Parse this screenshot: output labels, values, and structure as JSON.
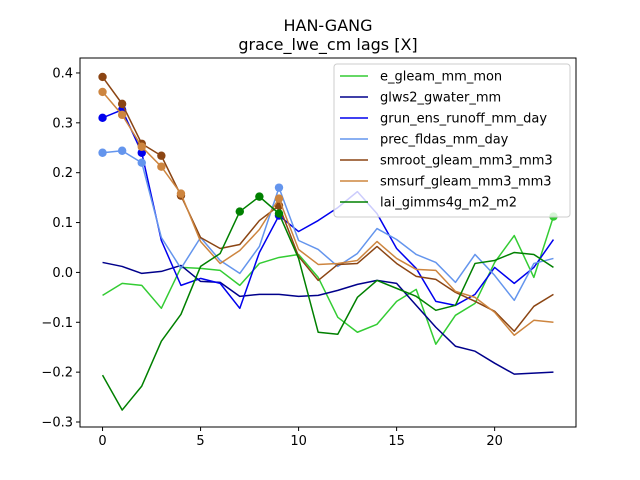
{
  "chart_data": {
    "type": "line",
    "title": "HAN-GANG",
    "subtitle": "grace_lwe_cm lags [X]",
    "xlabel": "",
    "ylabel": "",
    "xlim": [
      -1.15,
      24.15
    ],
    "ylim": [
      -0.31,
      0.43
    ],
    "xticks": [
      0,
      5,
      10,
      15,
      20
    ],
    "yticks": [
      -0.3,
      -0.2,
      -0.1,
      0.0,
      0.1,
      0.2,
      0.3,
      0.4
    ],
    "ytick_labels": [
      "−0.3",
      "−0.2",
      "−0.1",
      "0.0",
      "0.1",
      "0.2",
      "0.3",
      "0.4"
    ],
    "grid": false,
    "legend_position": "top-right",
    "x": [
      0,
      1,
      2,
      3,
      4,
      5,
      6,
      7,
      8,
      9,
      10,
      11,
      12,
      13,
      14,
      15,
      16,
      17,
      18,
      19,
      20,
      21,
      22,
      23
    ],
    "series": [
      {
        "name": "e_gleam_mm_mon",
        "color": "#33cc33",
        "values": [
          -0.046,
          -0.022,
          -0.026,
          -0.072,
          0.01,
          0.008,
          0.004,
          -0.026,
          0.018,
          0.03,
          0.036,
          -0.01,
          -0.09,
          -0.12,
          -0.104,
          -0.058,
          -0.034,
          -0.144,
          -0.086,
          -0.062,
          0.02,
          0.074,
          -0.01,
          0.112
        ],
        "markers": [
          23
        ]
      },
      {
        "name": "glws2_gwater_mm",
        "color": "#00008b",
        "values": [
          0.02,
          0.012,
          -0.002,
          0.002,
          0.014,
          -0.018,
          -0.02,
          -0.048,
          -0.044,
          -0.044,
          -0.048,
          -0.046,
          -0.036,
          -0.024,
          -0.016,
          -0.022,
          -0.066,
          -0.11,
          -0.148,
          -0.158,
          -0.182,
          -0.204,
          -0.202,
          -0.2
        ],
        "markers": []
      },
      {
        "name": "grun_ens_runoff_mm_day",
        "color": "#0000ee",
        "values": [
          0.31,
          0.326,
          0.24,
          0.064,
          -0.026,
          -0.012,
          -0.022,
          -0.072,
          0.04,
          0.114,
          0.082,
          0.104,
          0.13,
          0.162,
          0.118,
          0.048,
          0.008,
          -0.058,
          -0.066,
          -0.044,
          0.01,
          -0.022,
          0.01,
          0.066
        ],
        "markers": [
          0,
          1,
          2,
          9
        ]
      },
      {
        "name": "prec_fldas_mm_day",
        "color": "#6495ed",
        "values": [
          0.24,
          0.244,
          0.22,
          0.07,
          0.008,
          0.07,
          0.024,
          -0.002,
          0.052,
          0.17,
          0.064,
          0.046,
          0.012,
          0.038,
          0.088,
          0.066,
          0.036,
          0.02,
          -0.02,
          0.036,
          -0.006,
          -0.056,
          0.018,
          0.028
        ],
        "markers": [
          0,
          1,
          2,
          9
        ]
      },
      {
        "name": "smroot_gleam_mm3_mm3",
        "color": "#8b4513",
        "values": [
          0.392,
          0.338,
          0.258,
          0.234,
          0.154,
          0.07,
          0.048,
          0.056,
          0.104,
          0.134,
          0.032,
          -0.016,
          0.016,
          0.018,
          0.052,
          0.018,
          -0.008,
          -0.014,
          -0.04,
          -0.058,
          -0.078,
          -0.118,
          -0.068,
          -0.044
        ],
        "markers": [
          0,
          1,
          2,
          3,
          4,
          9
        ]
      },
      {
        "name": "smsurf_gleam_mm3_mm3",
        "color": "#cd853f",
        "values": [
          0.362,
          0.316,
          0.252,
          0.212,
          0.158,
          0.062,
          0.018,
          0.044,
          0.086,
          0.148,
          0.046,
          0.016,
          0.018,
          0.024,
          0.062,
          0.028,
          0.006,
          0.004,
          -0.038,
          -0.05,
          -0.08,
          -0.126,
          -0.096,
          -0.1
        ],
        "markers": [
          0,
          1,
          2,
          3,
          4,
          9
        ]
      },
      {
        "name": "lai_gimms4g_m2_m2",
        "color": "#008000",
        "values": [
          -0.206,
          -0.276,
          -0.228,
          -0.138,
          -0.084,
          0.012,
          0.038,
          0.122,
          0.152,
          0.118,
          0.028,
          -0.12,
          -0.124,
          -0.05,
          -0.016,
          -0.032,
          -0.048,
          -0.076,
          -0.066,
          0.018,
          0.024,
          0.04,
          0.036,
          0.01
        ],
        "markers": [
          7,
          8,
          9
        ]
      }
    ]
  }
}
